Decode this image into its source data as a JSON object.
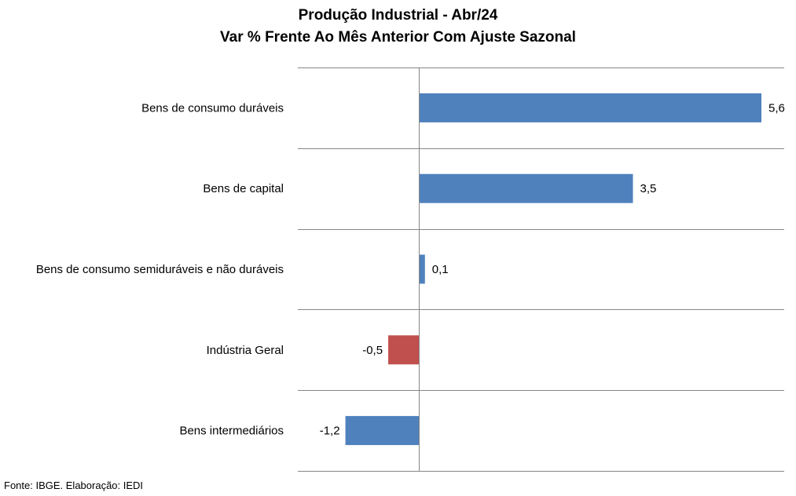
{
  "chart_data": {
    "type": "bar",
    "orientation": "horizontal",
    "title": "Produção Industrial - Abr/24",
    "subtitle": "Var % Frente Ao Mês Anterior Com Ajuste Sazonal",
    "categories": [
      "Bens de consumo duráveis",
      "Bens de capital",
      "Bens de consumo semiduráveis e não duráveis",
      "Indústria Geral",
      "Bens intermediários"
    ],
    "values": [
      5.6,
      3.5,
      0.1,
      -0.5,
      -1.2
    ],
    "value_labels": [
      "5,6",
      "3,5",
      "0,1",
      "-0,5",
      "-1,2"
    ],
    "bar_colors": [
      "#4f81bd",
      "#4f81bd",
      "#4f81bd",
      "#c0504d",
      "#4f81bd"
    ],
    "xlim": [
      -2.0,
      6.0
    ],
    "grid": "horizontal separators between categories",
    "legend": "none"
  },
  "footer": {
    "source": "Fonte: IBGE. Elaboração: IEDI"
  }
}
